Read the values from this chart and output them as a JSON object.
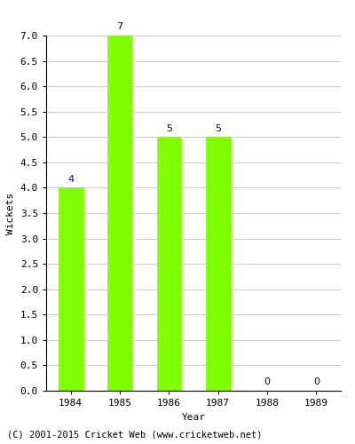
{
  "categories": [
    "1984",
    "1985",
    "1986",
    "1987",
    "1988",
    "1989"
  ],
  "values": [
    4,
    7,
    5,
    5,
    0,
    0
  ],
  "bar_color": "#7fff00",
  "bar_edge_color": "#7fff00",
  "label_color": "#00008b",
  "ylabel": "Wickets",
  "xlabel": "Year",
  "ylim": [
    0,
    7.0
  ],
  "yticks": [
    0.0,
    0.5,
    1.0,
    1.5,
    2.0,
    2.5,
    3.0,
    3.5,
    4.0,
    4.5,
    5.0,
    5.5,
    6.0,
    6.5,
    7.0
  ],
  "footnote": "(C) 2001-2015 Cricket Web (www.cricketweb.net)",
  "background_color": "#ffffff",
  "grid_color": "#cccccc",
  "label_fontsize": 8,
  "axis_fontsize": 8,
  "footnote_fontsize": 7.5
}
